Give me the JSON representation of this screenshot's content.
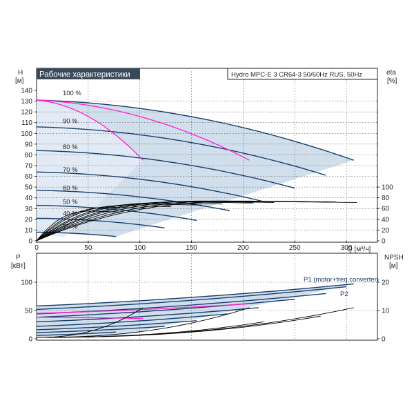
{
  "chart_data": [
    {
      "type": "line",
      "title": "Рабочие характеристики",
      "subtitle": "Hydro MPC-E 3 CR64-3 50/60Hz RUS, 50Hz",
      "ylabel_left": [
        "H",
        "[м]"
      ],
      "ylabel_right": [
        "eta",
        "[%]"
      ],
      "xlabel": "Q [м³/ч]",
      "xlim": [
        0,
        330
      ],
      "ylim": [
        0,
        140
      ],
      "x_ticks": [
        0,
        50,
        100,
        150,
        200,
        250,
        300
      ],
      "y_ticks": [
        0,
        10,
        20,
        30,
        40,
        50,
        60,
        70,
        80,
        90,
        100,
        110,
        120,
        130,
        140
      ],
      "eta_ticks": [
        0,
        20,
        40,
        60,
        80,
        100
      ],
      "eta_lim": [
        0,
        100
      ],
      "grid": true,
      "speed_labels": [
        {
          "text": "100 %",
          "x": 20,
          "y": 136
        },
        {
          "text": "90 %",
          "x": 20,
          "y": 110
        },
        {
          "text": "80 %",
          "x": 20,
          "y": 86
        },
        {
          "text": "70 %",
          "x": 20,
          "y": 65
        },
        {
          "text": "60 %",
          "x": 20,
          "y": 48
        },
        {
          "text": "50 %",
          "x": 20,
          "y": 35
        },
        {
          "text": "40 %",
          "x": 20,
          "y": 24
        },
        {
          "text": "25 %",
          "x": 20,
          "y": 12
        }
      ],
      "head_curves_3pumps": [
        {
          "speed": 100,
          "h0": 131,
          "qmax": 307,
          "hend": 75
        },
        {
          "speed": 90,
          "h0": 106,
          "qmax": 280,
          "hend": 61
        },
        {
          "speed": 80,
          "h0": 84,
          "qmax": 250,
          "hend": 49
        },
        {
          "speed": 70,
          "h0": 64,
          "qmax": 218,
          "hend": 37
        },
        {
          "speed": 60,
          "h0": 47,
          "qmax": 187,
          "hend": 28
        },
        {
          "speed": 50,
          "h0": 33,
          "qmax": 155,
          "hend": 19
        },
        {
          "speed": 40,
          "h0": 21,
          "qmax": 124,
          "hend": 12
        },
        {
          "speed": 25,
          "h0": 8,
          "qmax": 77,
          "hend": 4
        }
      ],
      "head_curves_magenta": [
        {
          "h0": 131,
          "qmax": 103,
          "hend": 75
        },
        {
          "h0": 131,
          "qmax": 206,
          "hend": 75
        }
      ],
      "eta_curves": [
        {
          "qmax": 310,
          "eta_peak": 73
        },
        {
          "qmax": 290,
          "eta_peak": 74
        },
        {
          "qmax": 260,
          "eta_peak": 74
        },
        {
          "qmax": 230,
          "eta_peak": 73
        },
        {
          "qmax": 210,
          "eta_peak": 72
        },
        {
          "qmax": 180,
          "eta_peak": 70
        },
        {
          "qmax": 160,
          "eta_peak": 68
        },
        {
          "qmax": 130,
          "eta_peak": 65
        },
        {
          "qmax": 110,
          "eta_peak": 62
        },
        {
          "qmax": 80,
          "eta_peak": 55
        }
      ]
    },
    {
      "type": "line",
      "ylabel_left": [
        "P",
        "[кВт]"
      ],
      "ylabel_right": [
        "NPSH",
        "[м]"
      ],
      "xlim": [
        0,
        330
      ],
      "ylim": [
        0,
        125
      ],
      "y_ticks": [
        0,
        50,
        100
      ],
      "npsh_ticks": [
        0,
        10,
        20
      ],
      "npsh_lim": [
        0,
        25
      ],
      "grid": true,
      "series_labels": [
        {
          "text": "P1 (motor+freq.converter)",
          "x": 265,
          "y": 103
        },
        {
          "text": "P2",
          "x": 300,
          "y": 78
        }
      ],
      "power_curves": [
        {
          "p0": 58,
          "qmax": 307,
          "pend": 97
        },
        {
          "p0": 52,
          "qmax": 300,
          "pend": 92
        },
        {
          "p0": 44,
          "qmax": 280,
          "pend": 80
        },
        {
          "p0": 38,
          "qmax": 250,
          "pend": 70
        },
        {
          "p0": 30,
          "qmax": 215,
          "pend": 55
        },
        {
          "p0": 22,
          "qmax": 185,
          "pend": 44
        },
        {
          "p0": 16,
          "qmax": 155,
          "pend": 32
        },
        {
          "p0": 11,
          "qmax": 124,
          "pend": 22
        },
        {
          "p0": 6,
          "qmax": 77,
          "pend": 12
        }
      ],
      "power_curves_magenta": [
        {
          "p0": 38,
          "qmax": 103,
          "pend": 36
        },
        {
          "p0": 45,
          "qmax": 206,
          "pend": 62
        }
      ],
      "npsh_curves": [
        {
          "qmax": 103,
          "npsh_end": 11
        },
        {
          "qmax": 206,
          "npsh_end": 11
        },
        {
          "qmax": 275,
          "npsh_end": 8
        },
        {
          "qmax": 307,
          "npsh_end": 11
        },
        {
          "qmax": 220,
          "npsh_end": 6
        }
      ]
    }
  ]
}
